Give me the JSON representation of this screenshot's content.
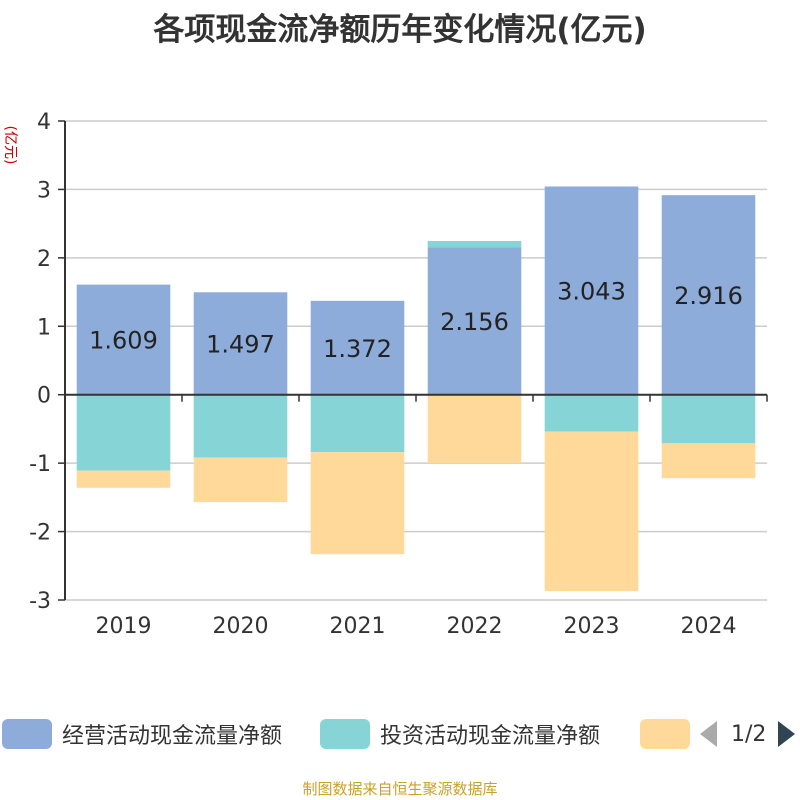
{
  "chart_data": {
    "type": "bar",
    "stacked": true,
    "title": "各项现金流净额历年变化情况(亿元)",
    "ylabel": "(亿元)",
    "xlabel": "",
    "categories": [
      "2019",
      "2020",
      "2021",
      "2022",
      "2023",
      "2024"
    ],
    "ylim": [
      -3,
      4
    ],
    "yticks": [
      -3,
      -2,
      -1,
      0,
      1,
      2,
      3,
      4
    ],
    "grid": true,
    "series": [
      {
        "name": "经营活动现金流量净额",
        "color": "#8eacd9",
        "values": [
          1.609,
          1.497,
          1.372,
          2.156,
          3.043,
          2.916
        ],
        "labels": [
          "1.609",
          "1.497",
          "1.372",
          "2.156",
          "3.043",
          "2.916"
        ]
      },
      {
        "name": "投资活动现金流量净额",
        "color": "#86d4d5",
        "values": [
          -1.11,
          -0.92,
          -0.84,
          0.09,
          -0.54,
          -0.71
        ]
      },
      {
        "name": "",
        "color": "#ffd999",
        "values": [
          -0.25,
          -0.65,
          -1.49,
          -1.0,
          -2.33,
          -0.51
        ]
      }
    ]
  },
  "legend": {
    "items": [
      {
        "label": "经营活动现金流量净额",
        "color": "#8eacd9"
      },
      {
        "label": "投资活动现金流量净额",
        "color": "#86d4d5"
      },
      {
        "label": "",
        "color": "#ffd999"
      }
    ],
    "page_indicator": "1/2"
  },
  "source_note": "制图数据来自恒生聚源数据库"
}
